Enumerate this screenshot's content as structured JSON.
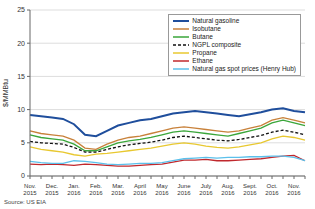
{
  "chart_data": {
    "type": "line",
    "y_label": "$/MMBtu",
    "source": "Source: US EIA",
    "categories": [
      "Nov. 2015",
      null,
      "Dec. 2015",
      null,
      "Jan. 2016",
      null,
      "Feb. 2016",
      null,
      "Mar. 2016",
      null,
      "April 2016",
      null,
      "May 2016",
      null,
      "June 2016",
      null,
      "July 2016",
      null,
      "Aug. 2016",
      null,
      "Sept. 2016",
      null,
      "Oct. 2016",
      null,
      "Nov. 2016",
      null
    ],
    "series": [
      {
        "name": "Natural gasoline",
        "color": "#1f4e9c",
        "values": [
          9.2,
          9.0,
          8.8,
          8.6,
          7.8,
          6.2,
          6.0,
          6.8,
          7.6,
          8.0,
          8.4,
          8.6,
          9.0,
          9.4,
          9.6,
          9.8,
          9.6,
          9.4,
          9.2,
          9.0,
          9.3,
          9.6,
          10.0,
          10.2,
          9.8,
          9.6
        ]
      },
      {
        "name": "Isobutane",
        "color": "#c8813a",
        "values": [
          6.8,
          6.4,
          6.2,
          6.0,
          5.4,
          4.2,
          4.0,
          4.8,
          5.4,
          5.8,
          6.0,
          6.4,
          6.8,
          7.2,
          7.4,
          7.2,
          7.0,
          6.8,
          6.6,
          6.8,
          7.2,
          7.6,
          8.4,
          8.8,
          8.4,
          8.0
        ]
      },
      {
        "name": "Butane",
        "color": "#3aa63a",
        "values": [
          6.2,
          5.8,
          5.6,
          5.4,
          4.8,
          3.8,
          3.8,
          4.4,
          5.0,
          5.3,
          5.5,
          5.8,
          6.2,
          6.6,
          6.8,
          6.6,
          6.4,
          6.2,
          6.0,
          6.4,
          6.8,
          7.2,
          8.0,
          8.4,
          8.0,
          7.6
        ]
      },
      {
        "name": "NGPL composite",
        "color": "#111111",
        "line_style": "dashed",
        "values": [
          5.2,
          5.0,
          4.9,
          4.8,
          4.3,
          3.6,
          3.6,
          4.0,
          4.4,
          4.7,
          4.9,
          5.1,
          5.4,
          5.8,
          6.0,
          5.8,
          5.6,
          5.4,
          5.3,
          5.5,
          5.8,
          6.1,
          6.6,
          6.9,
          6.6,
          6.2
        ]
      },
      {
        "name": "Propane",
        "color": "#e8c830",
        "values": [
          4.4,
          4.0,
          3.8,
          3.6,
          3.2,
          3.0,
          3.3,
          3.4,
          3.6,
          3.8,
          4.0,
          4.2,
          4.5,
          4.8,
          5.0,
          4.8,
          4.5,
          4.3,
          4.2,
          4.4,
          4.7,
          5.0,
          5.6,
          6.0,
          5.8,
          5.4
        ]
      },
      {
        "name": "Ethane",
        "color": "#c0282d",
        "values": [
          1.8,
          1.7,
          1.8,
          1.7,
          1.6,
          1.8,
          1.7,
          1.6,
          1.5,
          1.5,
          1.6,
          1.7,
          1.8,
          2.1,
          2.4,
          2.4,
          2.5,
          2.3,
          2.3,
          2.4,
          2.5,
          2.6,
          2.8,
          3.0,
          3.1,
          2.3
        ]
      },
      {
        "name": "Natural gas spot prices (Henry Hub)",
        "color": "#5bc0eb",
        "values": [
          2.2,
          2.0,
          1.9,
          1.9,
          2.3,
          2.2,
          2.0,
          1.8,
          1.7,
          1.8,
          1.9,
          1.9,
          2.0,
          2.3,
          2.6,
          2.7,
          2.8,
          2.7,
          2.8,
          2.8,
          2.9,
          2.9,
          3.0,
          3.0,
          2.8,
          2.3
        ]
      }
    ],
    "ylim": [
      0,
      25
    ],
    "yticks": [
      0,
      5,
      10,
      15,
      20,
      25
    ],
    "grid": true,
    "legend": "upper right"
  }
}
